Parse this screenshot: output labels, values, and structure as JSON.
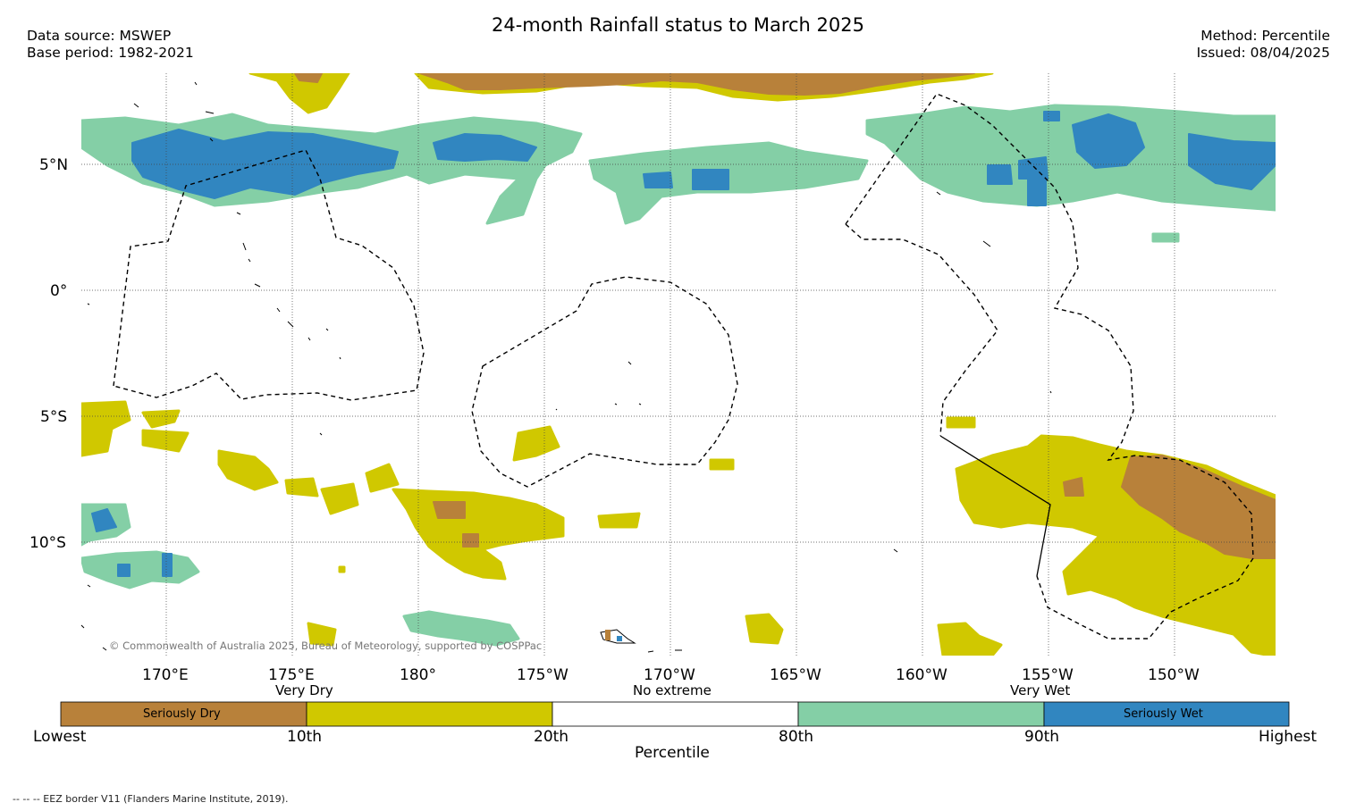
{
  "title": "24-month Rainfall status to March 2025",
  "data_source": "Data source: MSWEP",
  "base_period": "Base period: 1982-2021",
  "method": "Method: Percentile",
  "issued": "Issued: 08/04/2025",
  "lat_labels": [
    "5°N",
    "0°",
    "5°S",
    "10°S"
  ],
  "lon_labels": [
    "170°E",
    "175°E",
    "180°",
    "175°W",
    "170°W",
    "165°W",
    "160°W",
    "155°W",
    "150°W"
  ],
  "copyright": "© Commonwealth of Australia 2025, Bureau of Meteorology, supported by COSPPac",
  "legend": {
    "top_labels": [
      "Very Dry",
      "No extreme",
      "Very Wet"
    ],
    "classes": [
      {
        "label": "Seriously Dry",
        "color": "#b8813a"
      },
      {
        "label": "",
        "color": "#d0c800"
      },
      {
        "label": "",
        "color": "#ffffff"
      },
      {
        "label": "",
        "color": "#84cfa6"
      },
      {
        "label": "Seriously Wet",
        "color": "#3186c0"
      }
    ],
    "ticks": [
      "Lowest",
      "10th",
      "20th",
      "80th",
      "90th",
      "Highest"
    ],
    "axis_title": "Percentile"
  },
  "footer_note": "-- -- -- EEZ border V11 (Flanders Marine Institute, 2019)."
}
